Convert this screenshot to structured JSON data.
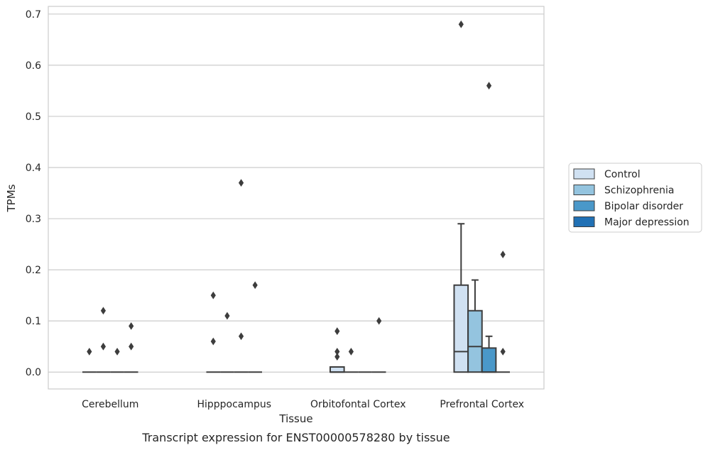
{
  "caption": "Transcript expression for ENST00000578280 by tissue",
  "chart_data": {
    "type": "box",
    "title": "",
    "xlabel": "Tissue",
    "ylabel": "TPMs",
    "ylim": [
      -0.033,
      0.715
    ],
    "yticks": [
      "0.0",
      "0.1",
      "0.2",
      "0.3",
      "0.4",
      "0.5",
      "0.6",
      "0.7"
    ],
    "grid": "horizontal",
    "legend_position": "right",
    "categories": [
      "Cerebellum",
      "Hipppocampus",
      "Orbitofontal Cortex",
      "Prefrontal Cortex"
    ],
    "series": [
      {
        "name": "Control",
        "color": "#d0e1f2",
        "boxes": [
          {
            "q1": 0,
            "median": 0,
            "q3": 0,
            "whislo": 0,
            "whishi": 0,
            "fliers": [
              0.04
            ]
          },
          {
            "q1": 0,
            "median": 0,
            "q3": 0,
            "whislo": 0,
            "whishi": 0,
            "fliers": [
              0.06,
              0.15
            ]
          },
          {
            "q1": 0,
            "median": 0,
            "q3": 0.01,
            "whislo": 0,
            "whishi": 0.01,
            "fliers": [
              0.03,
              0.04,
              0.08
            ]
          },
          {
            "q1": 0,
            "median": 0.04,
            "q3": 0.17,
            "whislo": 0,
            "whishi": 0.29,
            "fliers": [
              0.68
            ]
          }
        ]
      },
      {
        "name": "Schizophrenia",
        "color": "#94c4df",
        "boxes": [
          {
            "q1": 0,
            "median": 0,
            "q3": 0,
            "whislo": 0,
            "whishi": 0,
            "fliers": [
              0.05,
              0.12
            ]
          },
          {
            "q1": 0,
            "median": 0,
            "q3": 0,
            "whislo": 0,
            "whishi": 0,
            "fliers": [
              0.11
            ]
          },
          {
            "q1": 0,
            "median": 0,
            "q3": 0,
            "whislo": 0,
            "whishi": 0,
            "fliers": [
              0.04
            ]
          },
          {
            "q1": 0,
            "median": 0.05,
            "q3": 0.12,
            "whislo": 0,
            "whishi": 0.18,
            "fliers": []
          }
        ]
      },
      {
        "name": "Bipolar disorder",
        "color": "#4a98c9",
        "boxes": [
          {
            "q1": 0,
            "median": 0,
            "q3": 0,
            "whislo": 0,
            "whishi": 0,
            "fliers": [
              0.04
            ]
          },
          {
            "q1": 0,
            "median": 0,
            "q3": 0,
            "whislo": 0,
            "whishi": 0,
            "fliers": [
              0.07,
              0.37
            ]
          },
          {
            "q1": 0,
            "median": 0,
            "q3": 0,
            "whislo": 0,
            "whishi": 0,
            "fliers": []
          },
          {
            "q1": 0,
            "median": 0,
            "q3": 0.047,
            "whislo": 0,
            "whishi": 0.07,
            "fliers": [
              0.56
            ]
          }
        ]
      },
      {
        "name": "Major depression",
        "color": "#2171b5",
        "boxes": [
          {
            "q1": 0,
            "median": 0,
            "q3": 0,
            "whislo": 0,
            "whishi": 0,
            "fliers": [
              0.05,
              0.09
            ]
          },
          {
            "q1": 0,
            "median": 0,
            "q3": 0,
            "whislo": 0,
            "whishi": 0,
            "fliers": [
              0.17
            ]
          },
          {
            "q1": 0,
            "median": 0,
            "q3": 0,
            "whislo": 0,
            "whishi": 0,
            "fliers": [
              0.1
            ]
          },
          {
            "q1": 0,
            "median": 0,
            "q3": 0,
            "whislo": 0,
            "whishi": 0,
            "fliers": [
              0.04,
              0.23
            ]
          }
        ]
      }
    ]
  }
}
